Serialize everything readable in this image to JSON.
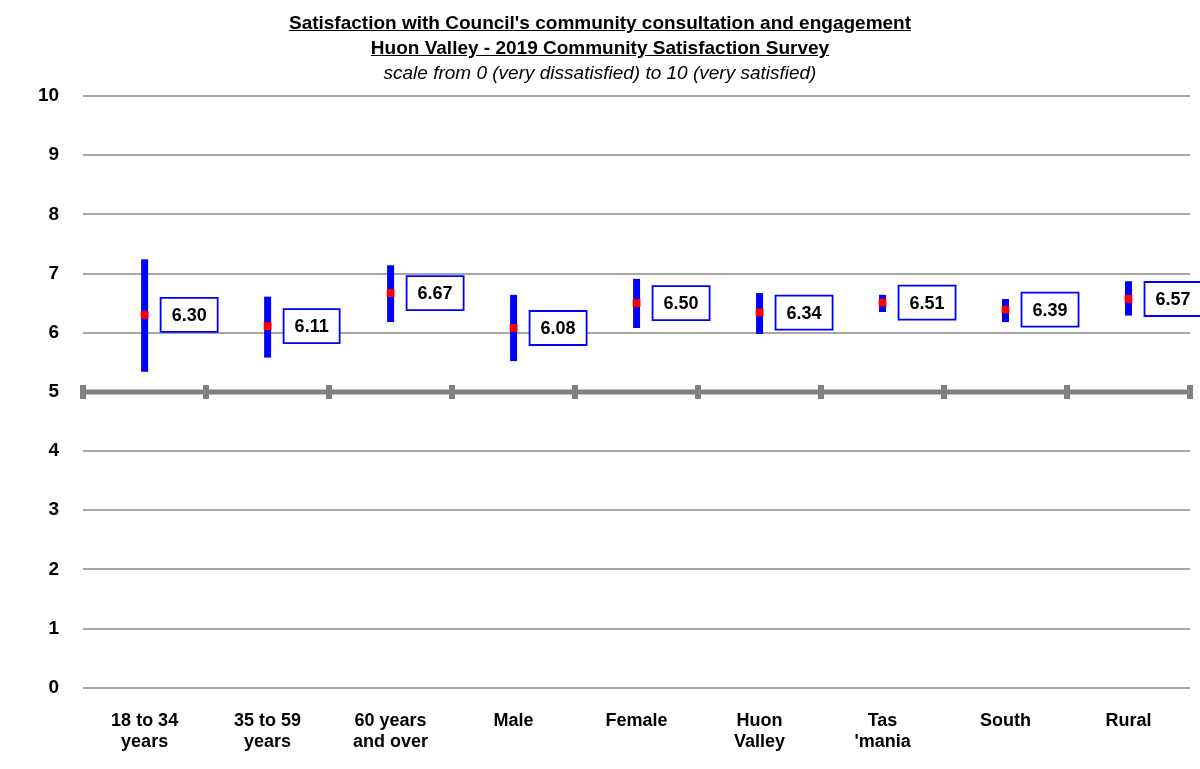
{
  "chart_data": {
    "type": "scatter",
    "title": "Satisfaction  with Council's community consultation  and engagement",
    "subtitle": "Huon Valley -  2019 Community Satisfaction Survey",
    "annotations": [
      "scale from 0 (very dissatisfied) to 10 (very satisfied)"
    ],
    "categories": [
      "18 to 34 years",
      "35 to 59 years",
      "60 years and over",
      "Male",
      "Female",
      "Huon Valley",
      "Tas 'mania",
      "South",
      "Rural"
    ],
    "values": [
      6.3,
      6.11,
      6.67,
      6.08,
      6.5,
      6.34,
      6.51,
      6.39,
      6.57
    ],
    "value_labels": [
      "6.30",
      "6.11",
      "6.67",
      "6.08",
      "6.50",
      "6.34",
      "6.51",
      "6.39",
      "6.57"
    ],
    "errors": [
      [
        5.34,
        7.24
      ],
      [
        5.58,
        6.61
      ],
      [
        6.18,
        7.14
      ],
      [
        5.52,
        6.64
      ],
      [
        6.08,
        6.91
      ],
      [
        5.98,
        6.67
      ],
      [
        6.35,
        6.64
      ],
      [
        6.18,
        6.57
      ],
      [
        6.29,
        6.87
      ]
    ],
    "color": "#ff0000",
    "marker": "square",
    "ylim": [
      0,
      10
    ],
    "yticks": [
      0,
      1,
      2,
      3,
      4,
      5,
      6,
      7,
      8,
      9,
      10
    ],
    "grid": "y",
    "ref_lines": [
      {
        "axis": "y",
        "value": 5,
        "color": "#808080"
      }
    ]
  }
}
